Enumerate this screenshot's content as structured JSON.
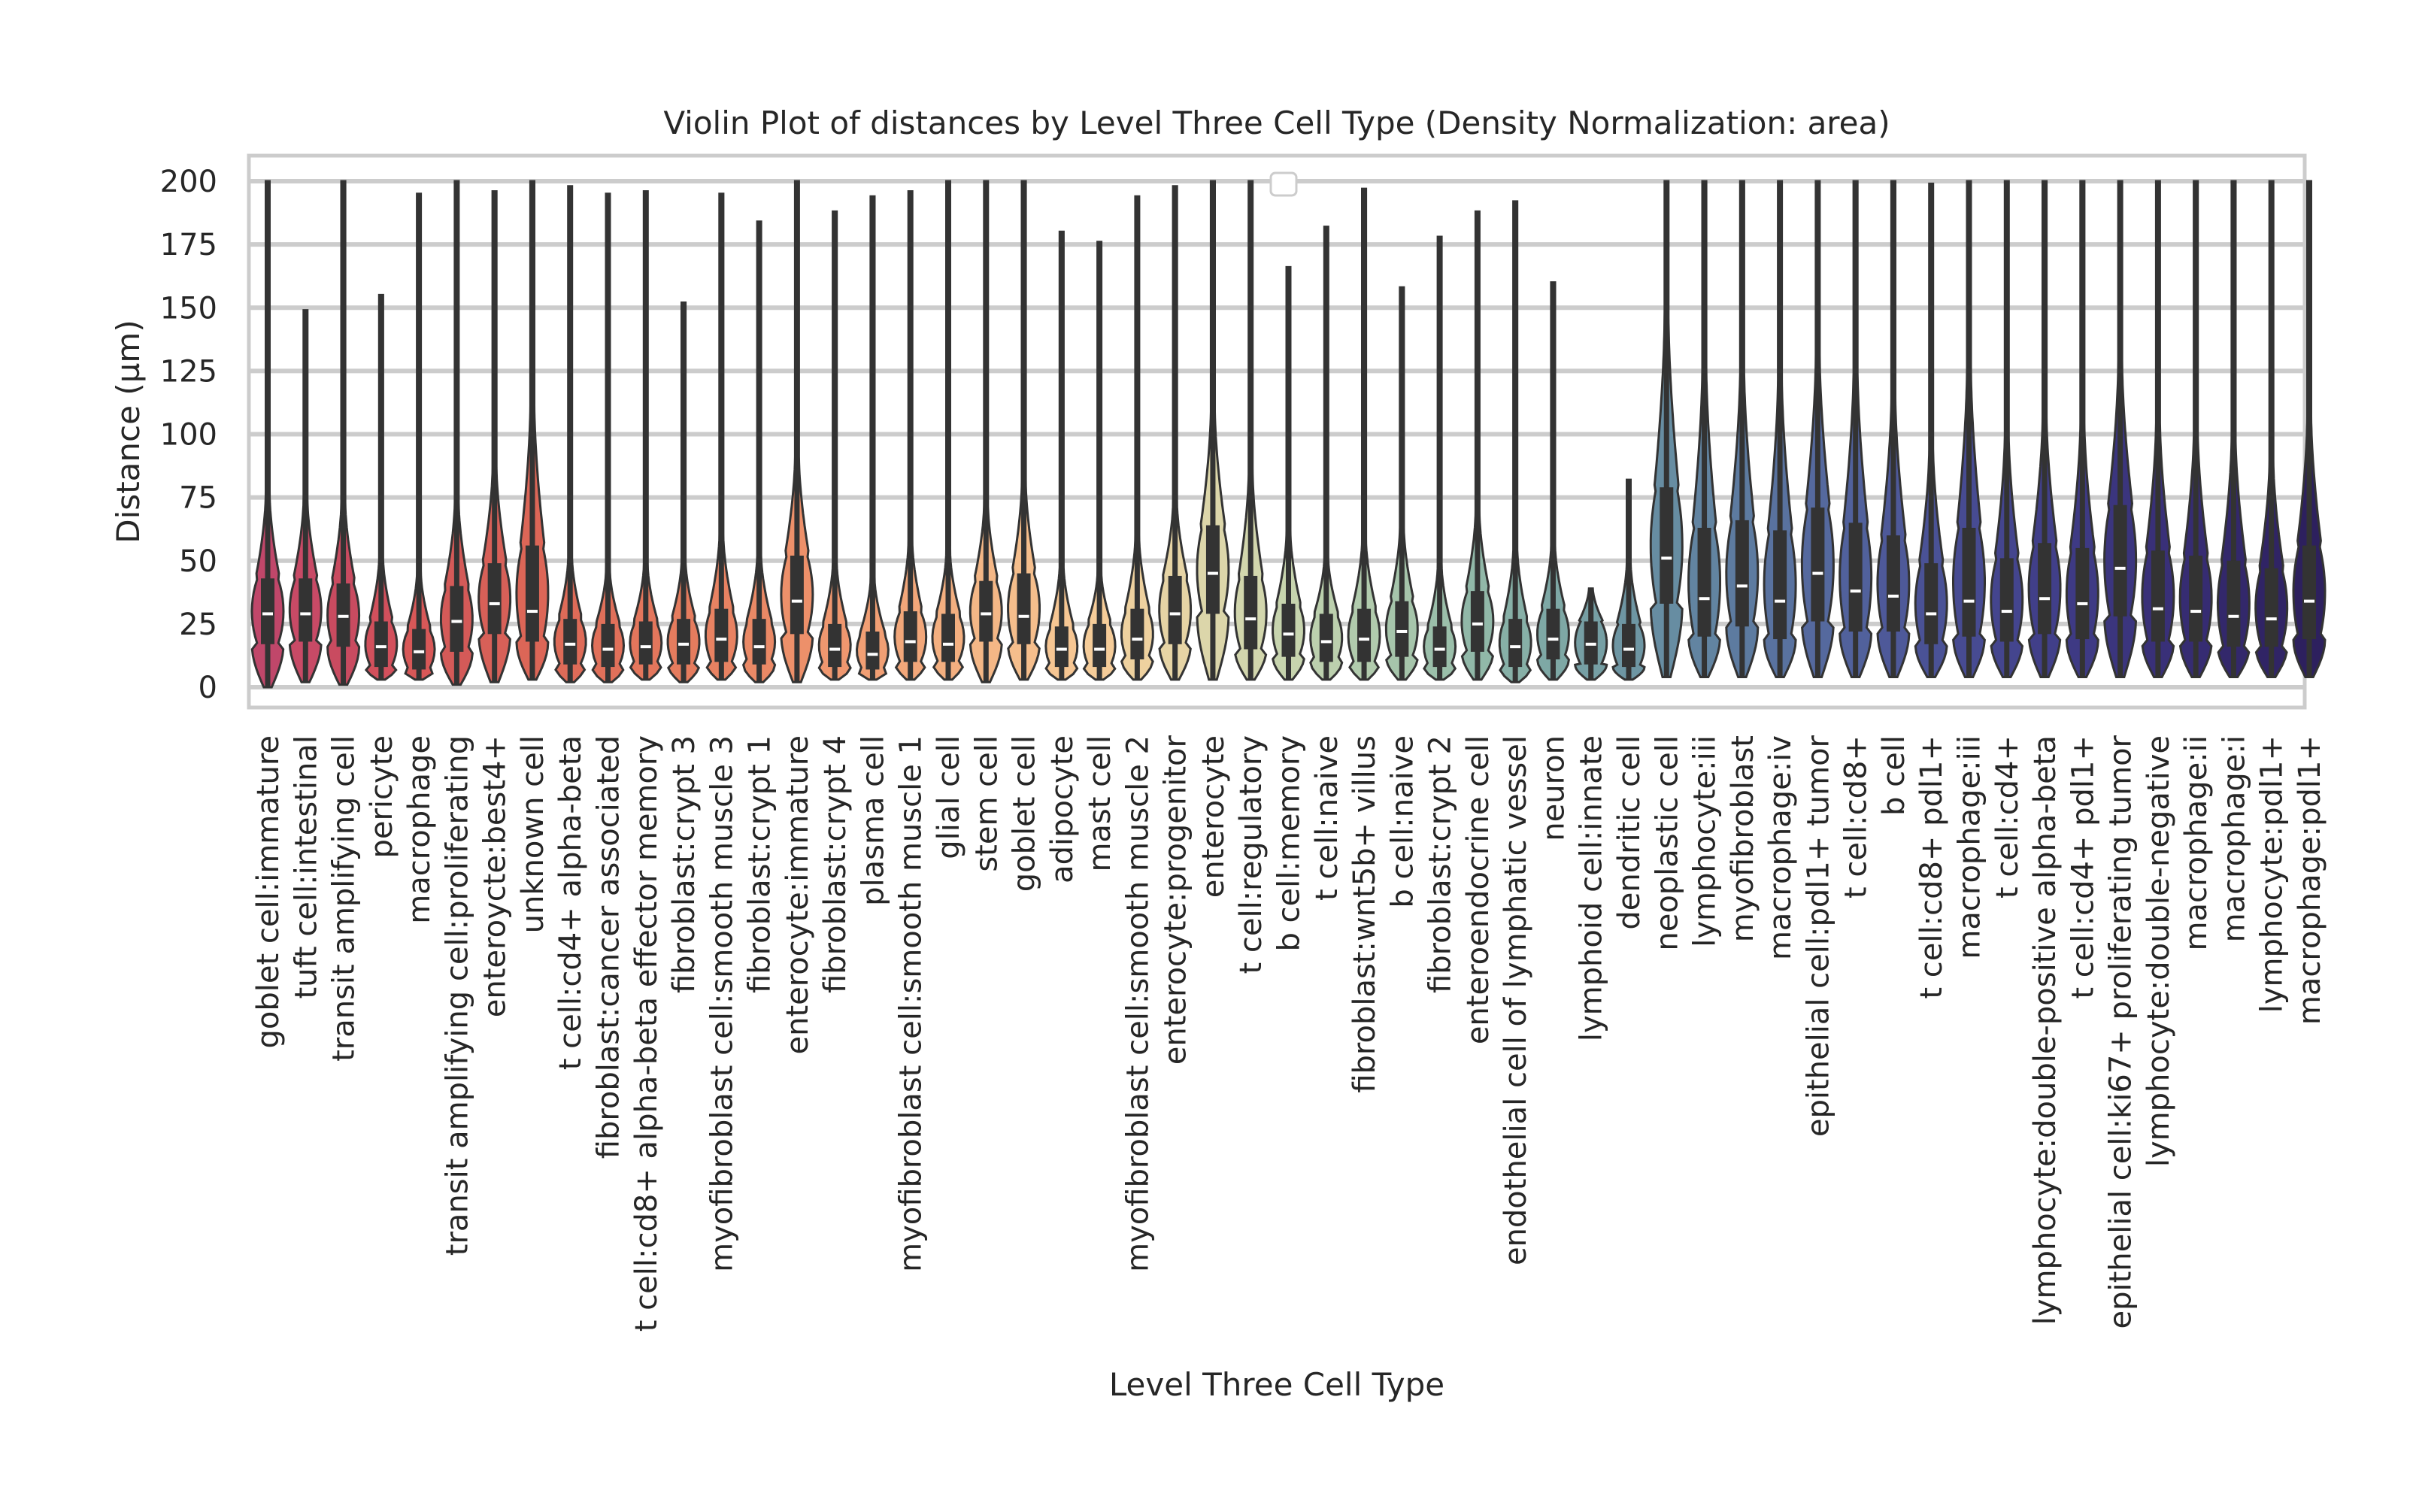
{
  "chart_data": {
    "type": "violin",
    "title": "Violin Plot of distances by Level Three Cell Type (Density Normalization: area)",
    "xlabel": "Level Three Cell Type",
    "ylabel": "Distance (µm)",
    "ylim": [
      -10,
      210
    ],
    "yticks": [
      0,
      25,
      50,
      75,
      100,
      125,
      150,
      175,
      200
    ],
    "grid": true,
    "legend": "top-center (empty)",
    "categories": [
      "goblet cell:immature",
      "tuft cell:intestinal",
      "transit amplifying cell",
      "pericyte",
      "macrophage",
      "transit amplifying cell:proliferating",
      "enteroycte:best4+",
      "unknown cell",
      "t cell:cd4+ alpha-beta",
      "fibroblast:cancer associated",
      "t cell:cd8+ alpha-beta effector memory",
      "fibroblast:crypt 3",
      "myofibroblast cell:smooth muscle 3",
      "fibroblast:crypt 1",
      "enterocyte:immature",
      "fibroblast:crypt 4",
      "plasma cell",
      "myofibroblast cell:smooth muscle 1",
      "glial cell",
      "stem cell",
      "goblet cell",
      "adipocyte",
      "mast cell",
      "myofibroblast cell:smooth muscle 2",
      "enterocyte:progenitor",
      "enterocyte",
      "t cell:regulatory",
      "b cell:memory",
      "t cell:naive",
      "fibroblast:wnt5b+ villus",
      "b cell:naive",
      "fibroblast:crypt 2",
      "enteroendocrine cell",
      "endothelial cell of lymphatic vessel",
      "neuron",
      "lymphoid cell:innate",
      "dendritic cell",
      "neoplastic cell",
      "lymphocyte:iii",
      "myofibroblast",
      "macrophage:iv",
      "epithelial cell:pdl1+ tumor",
      "t cell:cd8+",
      "b cell",
      "t cell:cd8+ pdl1+",
      "macrophage:iii",
      "t cell:cd4+",
      "lymphocyte:double-positive alpha-beta",
      "t cell:cd4+ pdl1+",
      "epithelial cell:ki67+ proliferating tumor",
      "lymphocyte:double-negative",
      "macrophage:ii",
      "macrophage:i",
      "lymphocyte:pdl1+",
      "macrophage:pdl1+"
    ],
    "stats": [
      {
        "min": 0,
        "q1": 17,
        "median": 29,
        "q3": 43,
        "max": 200,
        "whisker_hi": 76,
        "color": "#c0476a"
      },
      {
        "min": 2,
        "q1": 18,
        "median": 29,
        "q3": 43,
        "max": 149,
        "whisker_hi": 74,
        "color": "#c84a66"
      },
      {
        "min": 1,
        "q1": 16,
        "median": 28,
        "q3": 41,
        "max": 200,
        "whisker_hi": 73,
        "color": "#c94b60"
      },
      {
        "min": 3,
        "q1": 8,
        "median": 16,
        "q3": 26,
        "max": 155,
        "whisker_hi": 51,
        "color": "#d2505c"
      },
      {
        "min": 3,
        "q1": 7,
        "median": 14,
        "q3": 23,
        "max": 195,
        "whisker_hi": 45,
        "color": "#d85858"
      },
      {
        "min": 1,
        "q1": 14,
        "median": 26,
        "q3": 40,
        "max": 200,
        "whisker_hi": 73,
        "color": "#d45a58"
      },
      {
        "min": 2,
        "q1": 21,
        "median": 33,
        "q3": 49,
        "max": 196,
        "whisker_hi": 87,
        "color": "#d76058"
      },
      {
        "min": 3,
        "q1": 18,
        "median": 30,
        "q3": 56,
        "max": 200,
        "whisker_hi": 112,
        "color": "#dc6657"
      },
      {
        "min": 2,
        "q1": 9,
        "median": 17,
        "q3": 27,
        "max": 198,
        "whisker_hi": 51,
        "color": "#de6b58"
      },
      {
        "min": 2,
        "q1": 8,
        "median": 15,
        "q3": 25,
        "max": 195,
        "whisker_hi": 46,
        "color": "#e0705a"
      },
      {
        "min": 3,
        "q1": 9,
        "median": 16,
        "q3": 26,
        "max": 196,
        "whisker_hi": 48,
        "color": "#e3765c"
      },
      {
        "min": 2,
        "q1": 9,
        "median": 17,
        "q3": 27,
        "max": 152,
        "whisker_hi": 50,
        "color": "#e57c5e"
      },
      {
        "min": 3,
        "q1": 10,
        "median": 19,
        "q3": 31,
        "max": 195,
        "whisker_hi": 60,
        "color": "#e88262"
      },
      {
        "min": 2,
        "q1": 9,
        "median": 16,
        "q3": 27,
        "max": 184,
        "whisker_hi": 52,
        "color": "#ea8966"
      },
      {
        "min": 2,
        "q1": 21,
        "median": 34,
        "q3": 52,
        "max": 200,
        "whisker_hi": 91,
        "color": "#ed906a"
      },
      {
        "min": 3,
        "q1": 8,
        "median": 15,
        "q3": 25,
        "max": 188,
        "whisker_hi": 49,
        "color": "#ef976f"
      },
      {
        "min": 3,
        "q1": 7,
        "median": 13,
        "q3": 22,
        "max": 194,
        "whisker_hi": 43,
        "color": "#f19f74"
      },
      {
        "min": 3,
        "q1": 10,
        "median": 18,
        "q3": 30,
        "max": 196,
        "whisker_hi": 57,
        "color": "#f2a77a"
      },
      {
        "min": 3,
        "q1": 10,
        "median": 17,
        "q3": 29,
        "max": 200,
        "whisker_hi": 53,
        "color": "#f3af80"
      },
      {
        "min": 2,
        "q1": 18,
        "median": 29,
        "q3": 42,
        "max": 200,
        "whisker_hi": 72,
        "color": "#f4b786"
      },
      {
        "min": 3,
        "q1": 17,
        "median": 28,
        "q3": 45,
        "max": 200,
        "whisker_hi": 81,
        "color": "#f5be8c"
      },
      {
        "min": 3,
        "q1": 8,
        "median": 15,
        "q3": 24,
        "max": 180,
        "whisker_hi": 48,
        "color": "#f6c693"
      },
      {
        "min": 3,
        "q1": 8,
        "median": 15,
        "q3": 25,
        "max": 176,
        "whisker_hi": 45,
        "color": "#f5cc99"
      },
      {
        "min": 3,
        "q1": 11,
        "median": 19,
        "q3": 31,
        "max": 194,
        "whisker_hi": 59,
        "color": "#eed19f"
      },
      {
        "min": 3,
        "q1": 17,
        "median": 29,
        "q3": 44,
        "max": 198,
        "whisker_hi": 73,
        "color": "#e6d4a5"
      },
      {
        "min": 3,
        "q1": 29,
        "median": 45,
        "q3": 64,
        "max": 200,
        "whisker_hi": 110,
        "color": "#dcd6aa"
      },
      {
        "min": 3,
        "q1": 15,
        "median": 27,
        "q3": 44,
        "max": 200,
        "whisker_hi": 85,
        "color": "#d2d6ad"
      },
      {
        "min": 3,
        "q1": 12,
        "median": 21,
        "q3": 33,
        "max": 166,
        "whisker_hi": 61,
        "color": "#c7d4ae"
      },
      {
        "min": 3,
        "q1": 10,
        "median": 18,
        "q3": 29,
        "max": 182,
        "whisker_hi": 51,
        "color": "#bcd0ae"
      },
      {
        "min": 3,
        "q1": 10,
        "median": 19,
        "q3": 31,
        "max": 197,
        "whisker_hi": 58,
        "color": "#b1cbad"
      },
      {
        "min": 3,
        "q1": 12,
        "median": 22,
        "q3": 34,
        "max": 158,
        "whisker_hi": 63,
        "color": "#a6c5ab"
      },
      {
        "min": 3,
        "q1": 8,
        "median": 15,
        "q3": 24,
        "max": 178,
        "whisker_hi": 48,
        "color": "#9bbfaa"
      },
      {
        "min": 3,
        "q1": 14,
        "median": 25,
        "q3": 38,
        "max": 188,
        "whisker_hi": 69,
        "color": "#91b8a8"
      },
      {
        "min": 2,
        "q1": 8,
        "median": 16,
        "q3": 27,
        "max": 192,
        "whisker_hi": 55,
        "color": "#87b0a7"
      },
      {
        "min": 3,
        "q1": 11,
        "median": 19,
        "q3": 31,
        "max": 160,
        "whisker_hi": 56,
        "color": "#7ea8a5"
      },
      {
        "min": 3,
        "q1": 9,
        "median": 17,
        "q3": 26,
        "max": 39,
        "whisker_hi": 39,
        "color": "#769fa4"
      },
      {
        "min": 3,
        "q1": 8,
        "median": 15,
        "q3": 25,
        "max": 82,
        "whisker_hi": 49,
        "color": "#6e96a3"
      },
      {
        "min": 4,
        "q1": 33,
        "median": 51,
        "q3": 79,
        "max": 200,
        "whisker_hi": 147,
        "color": "#678da2"
      },
      {
        "min": 4,
        "q1": 20,
        "median": 35,
        "q3": 63,
        "max": 200,
        "whisker_hi": 127,
        "color": "#6284a1"
      },
      {
        "min": 4,
        "q1": 24,
        "median": 40,
        "q3": 66,
        "max": 200,
        "whisker_hi": 126,
        "color": "#5d7ba0"
      },
      {
        "min": 4,
        "q1": 19,
        "median": 34,
        "q3": 62,
        "max": 200,
        "whisker_hi": 122,
        "color": "#59729f"
      },
      {
        "min": 4,
        "q1": 26,
        "median": 45,
        "q3": 71,
        "max": 200,
        "whisker_hi": 131,
        "color": "#55699e"
      },
      {
        "min": 4,
        "q1": 22,
        "median": 38,
        "q3": 65,
        "max": 200,
        "whisker_hi": 126,
        "color": "#51619c"
      },
      {
        "min": 4,
        "q1": 22,
        "median": 36,
        "q3": 60,
        "max": 200,
        "whisker_hi": 115,
        "color": "#4e5999"
      },
      {
        "min": 4,
        "q1": 17,
        "median": 29,
        "q3": 49,
        "max": 199,
        "whisker_hi": 94,
        "color": "#4a5296"
      },
      {
        "min": 4,
        "q1": 20,
        "median": 34,
        "q3": 63,
        "max": 200,
        "whisker_hi": 126,
        "color": "#474b92"
      },
      {
        "min": 4,
        "q1": 18,
        "median": 30,
        "q3": 51,
        "max": 200,
        "whisker_hi": 100,
        "color": "#44458e"
      },
      {
        "min": 4,
        "q1": 21,
        "median": 35,
        "q3": 57,
        "max": 200,
        "whisker_hi": 107,
        "color": "#413f89"
      },
      {
        "min": 4,
        "q1": 19,
        "median": 33,
        "q3": 55,
        "max": 200,
        "whisker_hi": 105,
        "color": "#3e3a84"
      },
      {
        "min": 4,
        "q1": 28,
        "median": 47,
        "q3": 72,
        "max": 200,
        "whisker_hi": 128,
        "color": "#3b357e"
      },
      {
        "min": 4,
        "q1": 18,
        "median": 31,
        "q3": 54,
        "max": 200,
        "whisker_hi": 105,
        "color": "#393078"
      },
      {
        "min": 4,
        "q1": 18,
        "median": 30,
        "q3": 52,
        "max": 200,
        "whisker_hi": 101,
        "color": "#362c72"
      },
      {
        "min": 4,
        "q1": 16,
        "median": 28,
        "q3": 50,
        "max": 200,
        "whisker_hi": 99,
        "color": "#33286b"
      },
      {
        "min": 4,
        "q1": 16,
        "median": 27,
        "q3": 47,
        "max": 200,
        "whisker_hi": 89,
        "color": "#302465"
      },
      {
        "min": 4,
        "q1": 19,
        "median": 34,
        "q3": 56,
        "max": 200,
        "whisker_hi": 107,
        "color": "#2d205e"
      }
    ]
  }
}
